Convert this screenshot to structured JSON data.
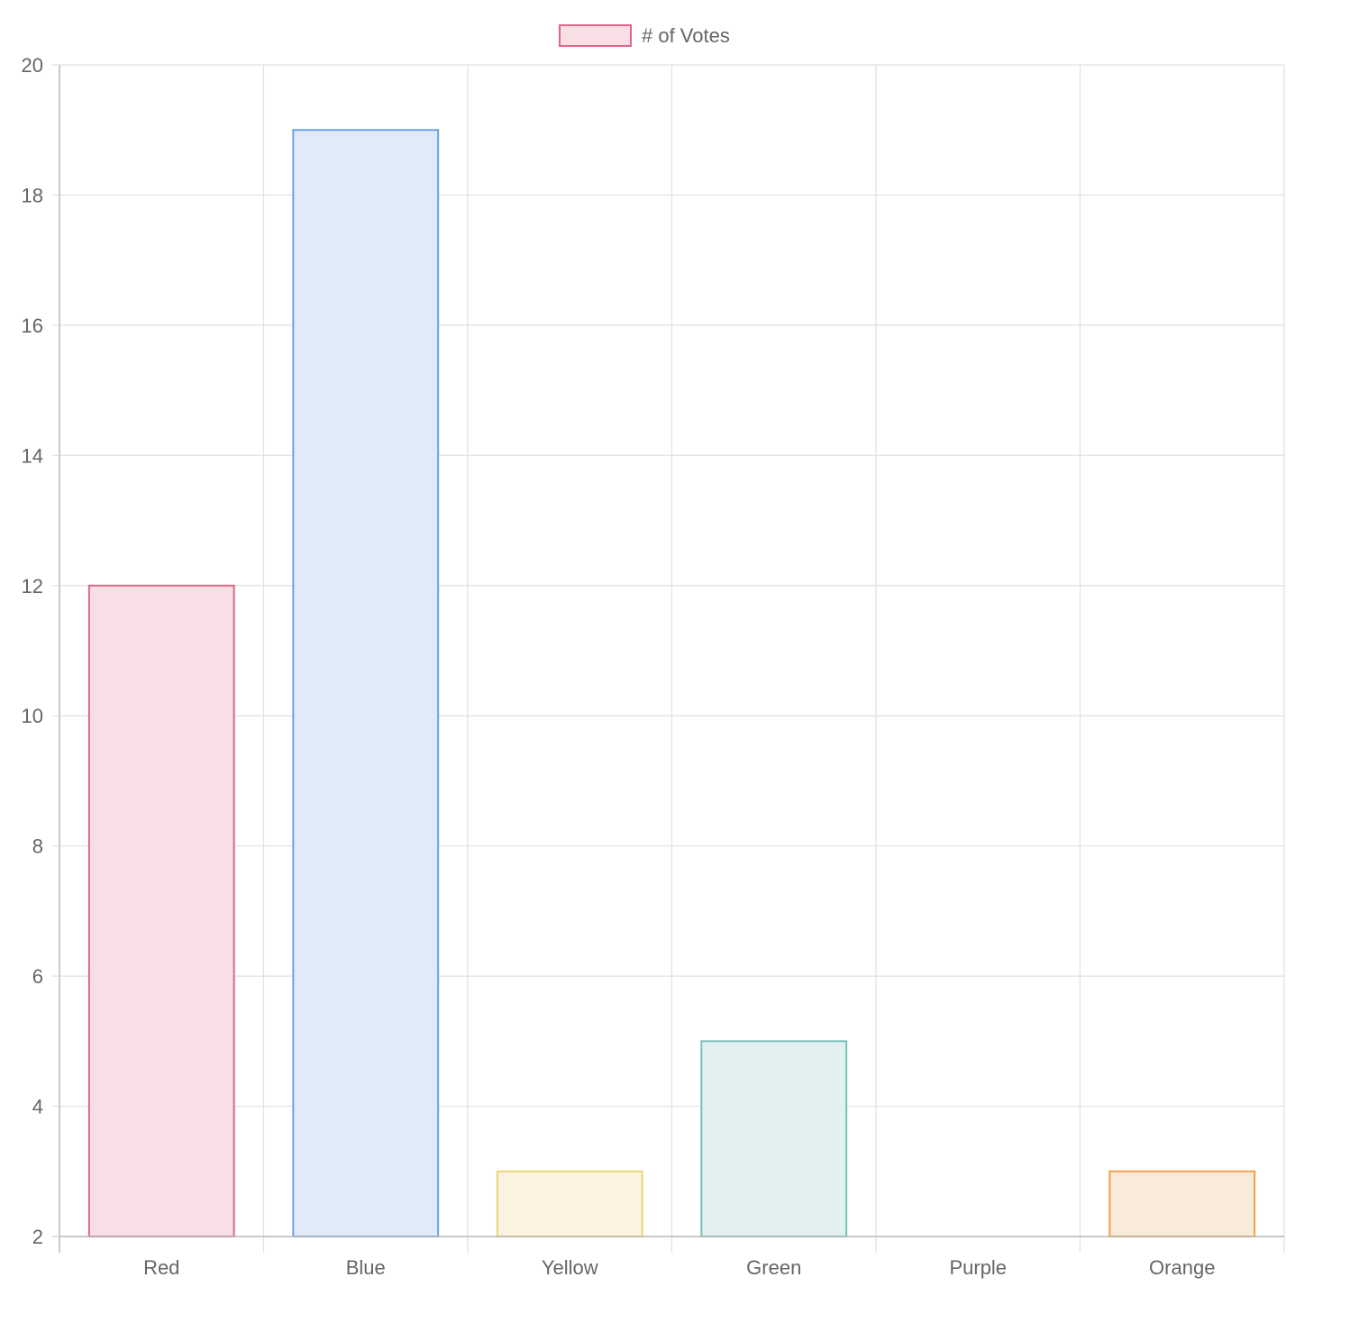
{
  "chart_data": {
    "type": "bar",
    "categories": [
      "Red",
      "Blue",
      "Yellow",
      "Green",
      "Purple",
      "Orange"
    ],
    "series": [
      {
        "name": "# of Votes",
        "values": [
          12,
          19,
          3,
          5,
          2,
          3
        ],
        "fill_colors": [
          "#f7dfe5",
          "#e0eaf8",
          "#fbf3df",
          "#e2f1f0",
          "#ece5fa",
          "#f8ebda"
        ],
        "border_colors": [
          "#dc6787",
          "#6da2e6",
          "#ecd479",
          "#79bfbc",
          "#a585f0",
          "#ef9f4f"
        ]
      }
    ],
    "legend": {
      "label": "# of Votes",
      "position": "top-center",
      "swatch_fill": "#f7dfe5",
      "swatch_border": "#dc6787"
    },
    "ylim": [
      2,
      20
    ],
    "yticks": [
      "2",
      "4",
      "6",
      "8",
      "10",
      "12",
      "14",
      "16",
      "18",
      "20"
    ],
    "grid": true,
    "title": "",
    "xlabel": "",
    "ylabel": ""
  }
}
